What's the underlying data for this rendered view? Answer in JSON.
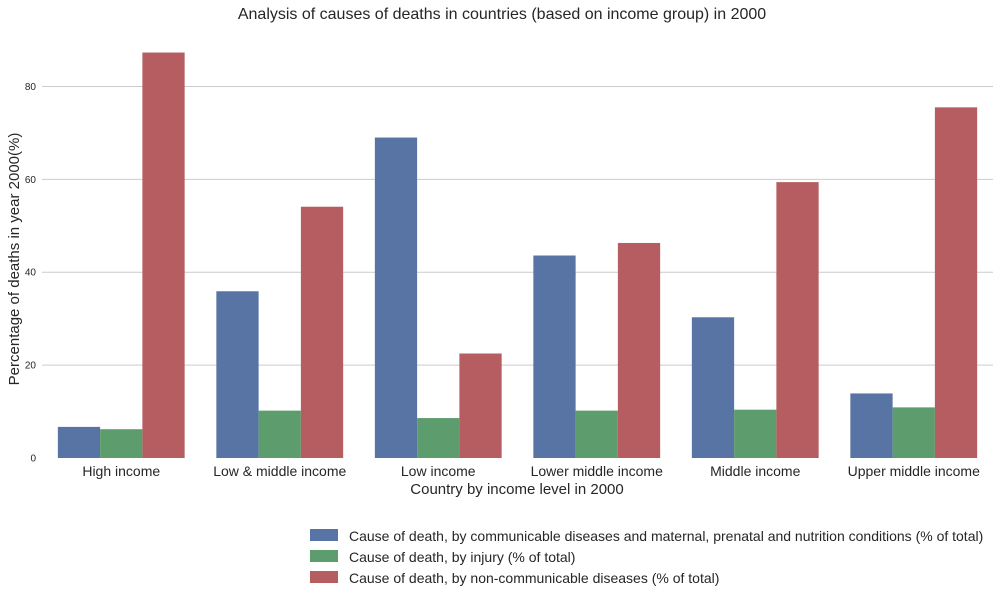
{
  "chart_data": {
    "type": "bar",
    "title": "Analysis of causes of deaths in countries (based on income group) in 2000",
    "xlabel": "Country by income level in 2000",
    "ylabel": "Percentage of deaths in year 2000(%)",
    "ylim": [
      0,
      90
    ],
    "yticks": [
      0,
      20,
      40,
      60,
      80
    ],
    "grid": true,
    "legend_position": "bottom-right",
    "categories": [
      "High income",
      "Low & middle income",
      "Low income",
      "Lower middle income",
      "Middle income",
      "Upper middle income"
    ],
    "series": [
      {
        "name": "Cause of death, by communicable diseases and maternal, prenatal and nutrition conditions (% of total)",
        "color": "#5874a5",
        "values": [
          6.7,
          35.9,
          69.0,
          43.6,
          30.3,
          13.9
        ]
      },
      {
        "name": "Cause of death, by injury (% of total)",
        "color": "#5d9c6c",
        "values": [
          6.2,
          10.2,
          8.6,
          10.2,
          10.4,
          10.9
        ]
      },
      {
        "name": "Cause of death, by non-communicable diseases (% of total)",
        "color": "#b55d60",
        "values": [
          87.3,
          54.1,
          22.5,
          46.3,
          59.4,
          75.5
        ]
      }
    ]
  }
}
